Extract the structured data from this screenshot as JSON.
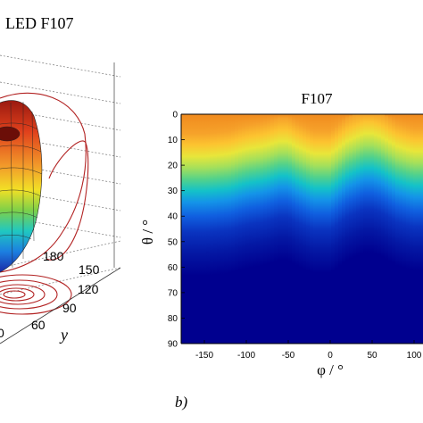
{
  "left_panel": {
    "title": "LED F107",
    "tick_labels": [
      "180",
      "150",
      "120",
      "90",
      "60"
    ],
    "axis_label": "y",
    "colors": {
      "surface_hot": "#d73a1c",
      "surface_mid": "#f0d020",
      "surface_cool": "#22a0d8",
      "contour": "#b22222"
    }
  },
  "panel_label": "b)",
  "chart_data": {
    "type": "heatmap",
    "title": "F107",
    "xlabel": "φ / °",
    "ylabel": "θ / °",
    "x_ticks": [
      "-150",
      "-100",
      "-50",
      "0",
      "50",
      "100"
    ],
    "y_ticks": [
      "0",
      "10",
      "20",
      "30",
      "40",
      "50",
      "60",
      "70",
      "80",
      "90"
    ],
    "xlim": [
      -180,
      180
    ],
    "ylim": [
      0,
      90
    ],
    "y_axis_inverted": true,
    "colormap": "jet",
    "visible_x_range": [
      -180,
      100
    ],
    "transition_theta_by_phi": {
      "phi": [
        -180,
        -150,
        -120,
        -100,
        -80,
        -60,
        -50,
        -40,
        -20,
        0,
        20,
        40,
        50,
        60,
        80,
        100
      ],
      "theta": [
        24,
        24,
        23,
        21,
        20,
        18,
        18,
        20,
        23,
        23,
        18,
        15,
        15,
        16,
        20,
        22
      ]
    }
  }
}
